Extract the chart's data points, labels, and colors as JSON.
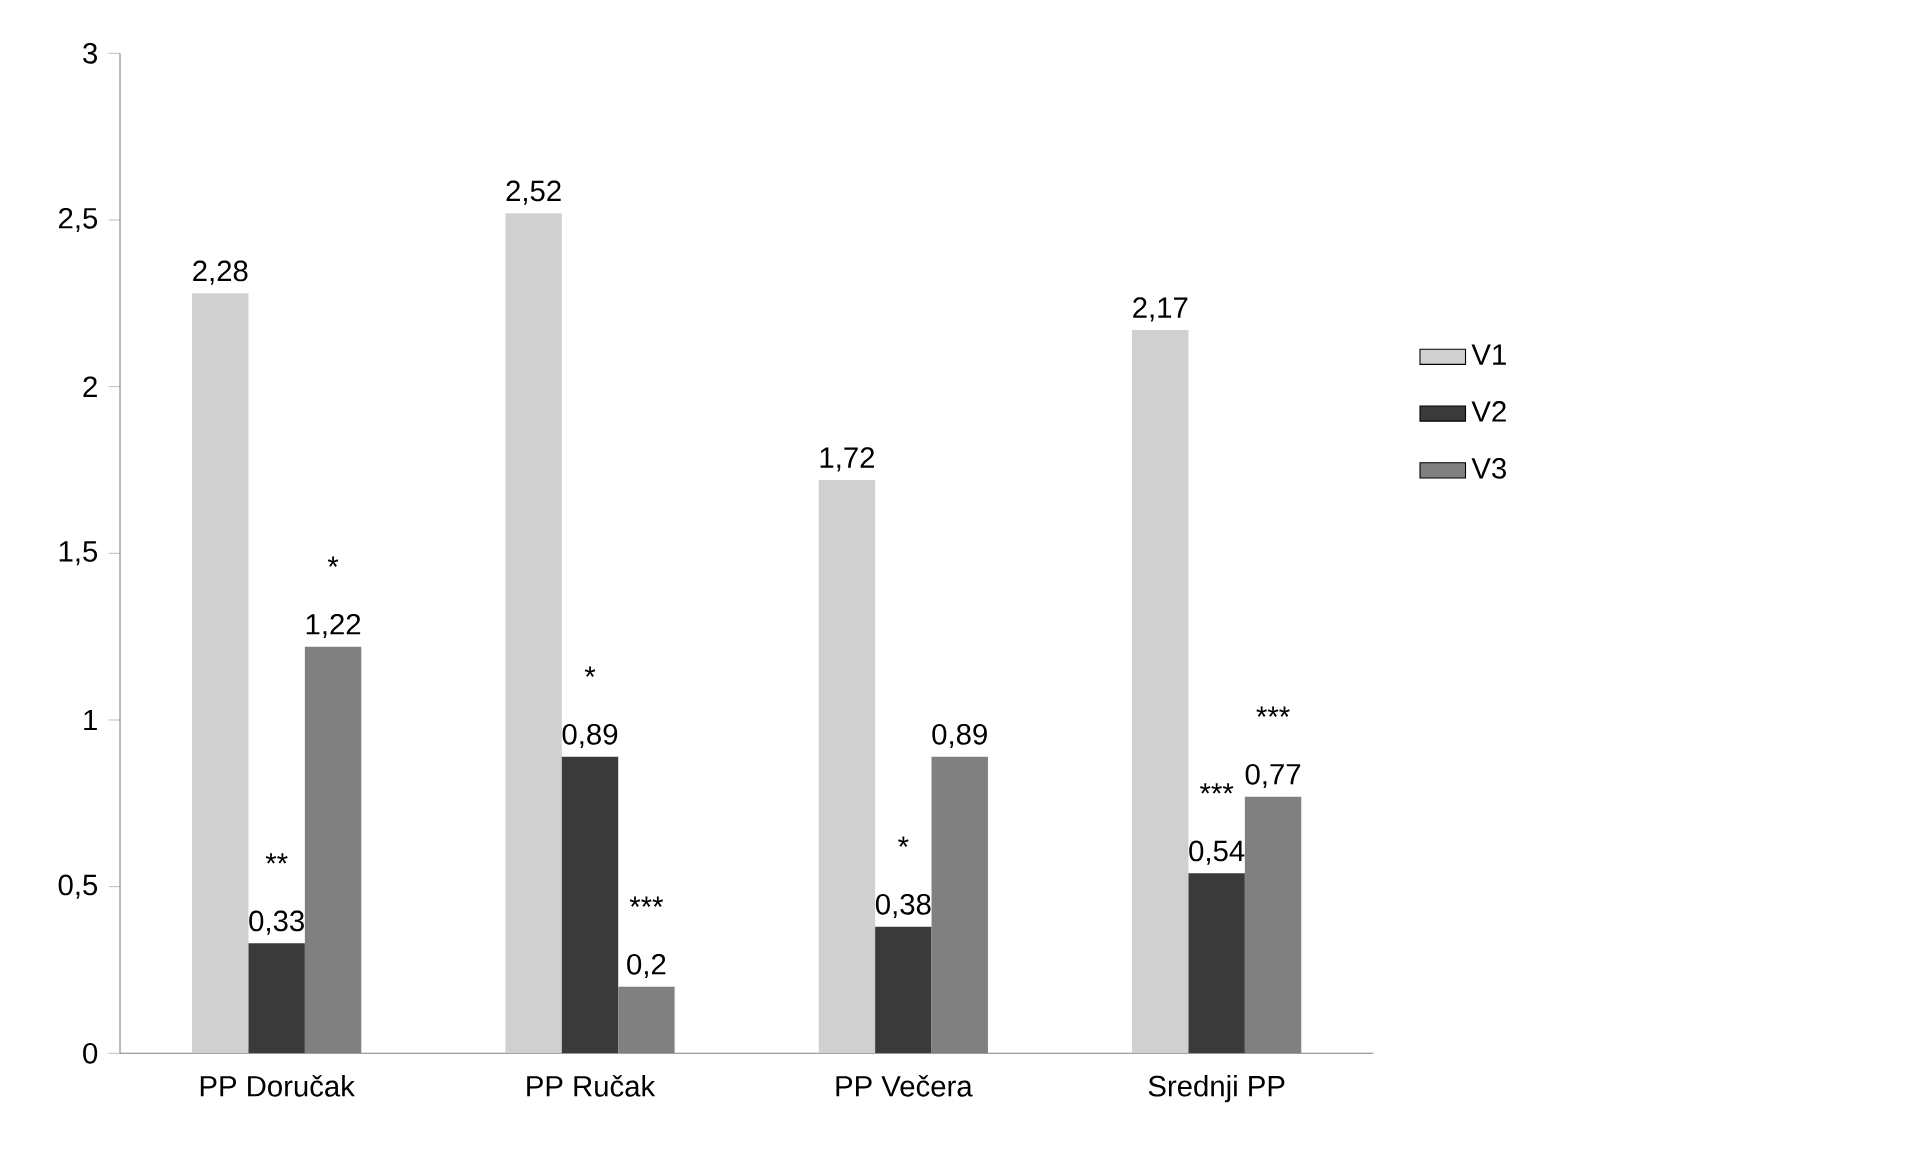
{
  "chart_data": {
    "type": "bar",
    "categories": [
      "PP Doručak",
      "PP Ručak",
      "PP Večera",
      "Srednji PP"
    ],
    "series": [
      {
        "name": "V1",
        "color": "#d0d0d0",
        "values": [
          2.28,
          2.52,
          1.72,
          2.17
        ],
        "value_labels": [
          "2,28",
          "2,52",
          "1,72",
          "2,17"
        ]
      },
      {
        "name": "V2",
        "color": "#3a3a3a",
        "values": [
          0.33,
          0.89,
          0.38,
          0.54
        ],
        "value_labels": [
          "0,33",
          "0,89",
          "0,38",
          "0,54"
        ]
      },
      {
        "name": "V3",
        "color": "#808080",
        "values": [
          1.22,
          0.2,
          0.89,
          0.77
        ],
        "value_labels": [
          "1,22",
          "0,2",
          "0,89",
          "0,77"
        ]
      }
    ],
    "ylim": [
      0,
      3
    ],
    "yticks": [
      0,
      {
        "value": 0.5,
        "label": "0,5"
      },
      1,
      {
        "value": 1.5,
        "label": "1,5"
      },
      2,
      {
        "value": 2.5,
        "label": "2,5"
      },
      3
    ],
    "annotations": [
      {
        "text": "**",
        "x": "PP Doručak",
        "y": 0.33
      },
      {
        "text": "*",
        "y": 1.22
      },
      {
        "text": "*",
        "x": "PP Ručak",
        "y": 0.89
      },
      {
        "text": "***",
        "y": 0.2
      },
      {
        "text": "*",
        "x": "PP Večera",
        "y": 0.38
      },
      {
        "text": "***",
        "x": "Srednji PP",
        "y": 0.54
      },
      {
        "text": "***",
        "y": 0.77
      }
    ],
    "grid": false,
    "legend": "right"
  }
}
